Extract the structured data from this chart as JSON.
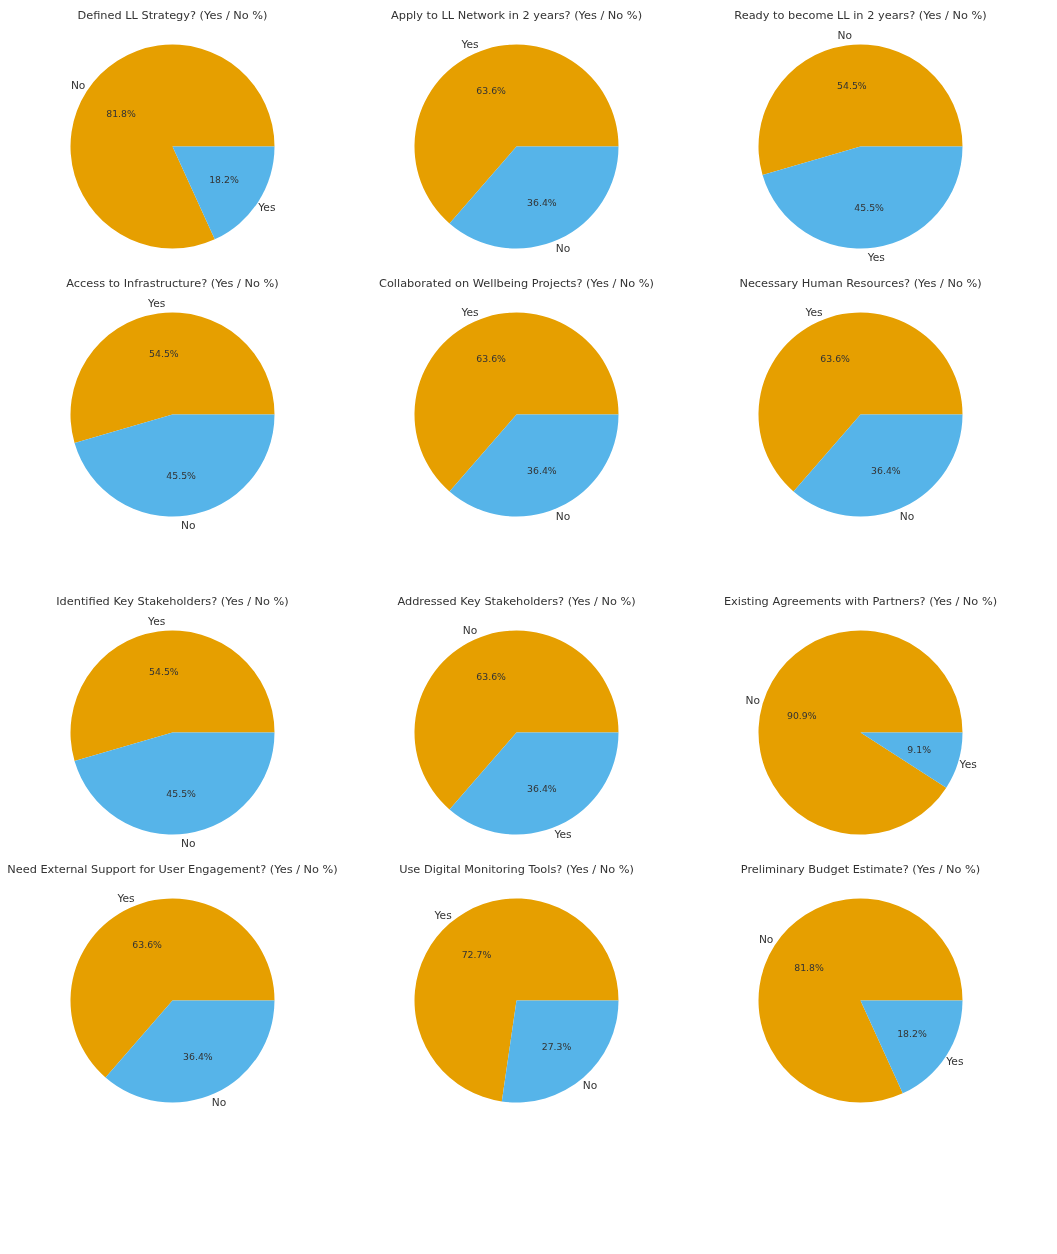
{
  "chart_data": [
    {
      "type": "pie",
      "title": "Defined LL Strategy? (Yes / No %)",
      "categories": [
        "No",
        "Yes"
      ],
      "values": [
        81.8,
        18.2
      ],
      "value_labels": [
        "81.8%",
        "18.2%"
      ],
      "colors": [
        "#e69f00",
        "#56b4e9"
      ]
    },
    {
      "type": "pie",
      "title": "Apply to LL Network in 2 years? (Yes / No %)",
      "categories": [
        "Yes",
        "No"
      ],
      "values": [
        63.6,
        36.4
      ],
      "value_labels": [
        "63.6%",
        "36.4%"
      ],
      "colors": [
        "#e69f00",
        "#56b4e9"
      ]
    },
    {
      "type": "pie",
      "title": "Ready to become LL in 2 years? (Yes / No %)",
      "categories": [
        "No",
        "Yes"
      ],
      "values": [
        54.5,
        45.5
      ],
      "value_labels": [
        "54.5%",
        "45.5%"
      ],
      "colors": [
        "#e69f00",
        "#56b4e9"
      ]
    },
    {
      "type": "pie",
      "title": "Access to Infrastructure? (Yes / No %)",
      "categories": [
        "Yes",
        "No"
      ],
      "values": [
        54.5,
        45.5
      ],
      "value_labels": [
        "54.5%",
        "45.5%"
      ],
      "colors": [
        "#e69f00",
        "#56b4e9"
      ]
    },
    {
      "type": "pie",
      "title": "Collaborated on Wellbeing Projects? (Yes / No %)",
      "categories": [
        "Yes",
        "No"
      ],
      "values": [
        63.6,
        36.4
      ],
      "value_labels": [
        "63.6%",
        "36.4%"
      ],
      "colors": [
        "#e69f00",
        "#56b4e9"
      ]
    },
    {
      "type": "pie",
      "title": "Necessary Human Resources? (Yes / No %)",
      "categories": [
        "Yes",
        "No"
      ],
      "values": [
        63.6,
        36.4
      ],
      "value_labels": [
        "63.6%",
        "36.4%"
      ],
      "colors": [
        "#e69f00",
        "#56b4e9"
      ]
    },
    {
      "type": "pie",
      "title": "Identified Key Stakeholders? (Yes / No %)",
      "categories": [
        "Yes",
        "No"
      ],
      "values": [
        54.5,
        45.5
      ],
      "value_labels": [
        "54.5%",
        "45.5%"
      ],
      "colors": [
        "#e69f00",
        "#56b4e9"
      ]
    },
    {
      "type": "pie",
      "title": "Addressed Key Stakeholders? (Yes / No %)",
      "categories": [
        "No",
        "Yes"
      ],
      "values": [
        63.6,
        36.4
      ],
      "value_labels": [
        "63.6%",
        "36.4%"
      ],
      "colors": [
        "#e69f00",
        "#56b4e9"
      ]
    },
    {
      "type": "pie",
      "title": "Existing Agreements with Partners? (Yes / No %)",
      "categories": [
        "No",
        "Yes"
      ],
      "values": [
        90.9,
        9.1
      ],
      "value_labels": [
        "90.9%",
        "9.1%"
      ],
      "colors": [
        "#e69f00",
        "#56b4e9"
      ]
    },
    {
      "type": "pie",
      "title": "Need External Support for User Engagement? (Yes / No %)",
      "categories": [
        "Yes",
        "No"
      ],
      "values": [
        63.6,
        36.4
      ],
      "value_labels": [
        "63.6%",
        "36.4%"
      ],
      "colors": [
        "#e69f00",
        "#56b4e9"
      ]
    },
    {
      "type": "pie",
      "title": "Use Digital Monitoring Tools? (Yes / No %)",
      "categories": [
        "Yes",
        "No"
      ],
      "values": [
        72.7,
        27.3
      ],
      "value_labels": [
        "72.7%",
        "27.3%"
      ],
      "colors": [
        "#e69f00",
        "#56b4e9"
      ]
    },
    {
      "type": "pie",
      "title": "Preliminary Budget Estimate? (Yes / No %)",
      "categories": [
        "No",
        "Yes"
      ],
      "values": [
        81.8,
        18.2
      ],
      "value_labels": [
        "81.8%",
        "18.2%"
      ],
      "colors": [
        "#e69f00",
        "#56b4e9"
      ]
    }
  ]
}
